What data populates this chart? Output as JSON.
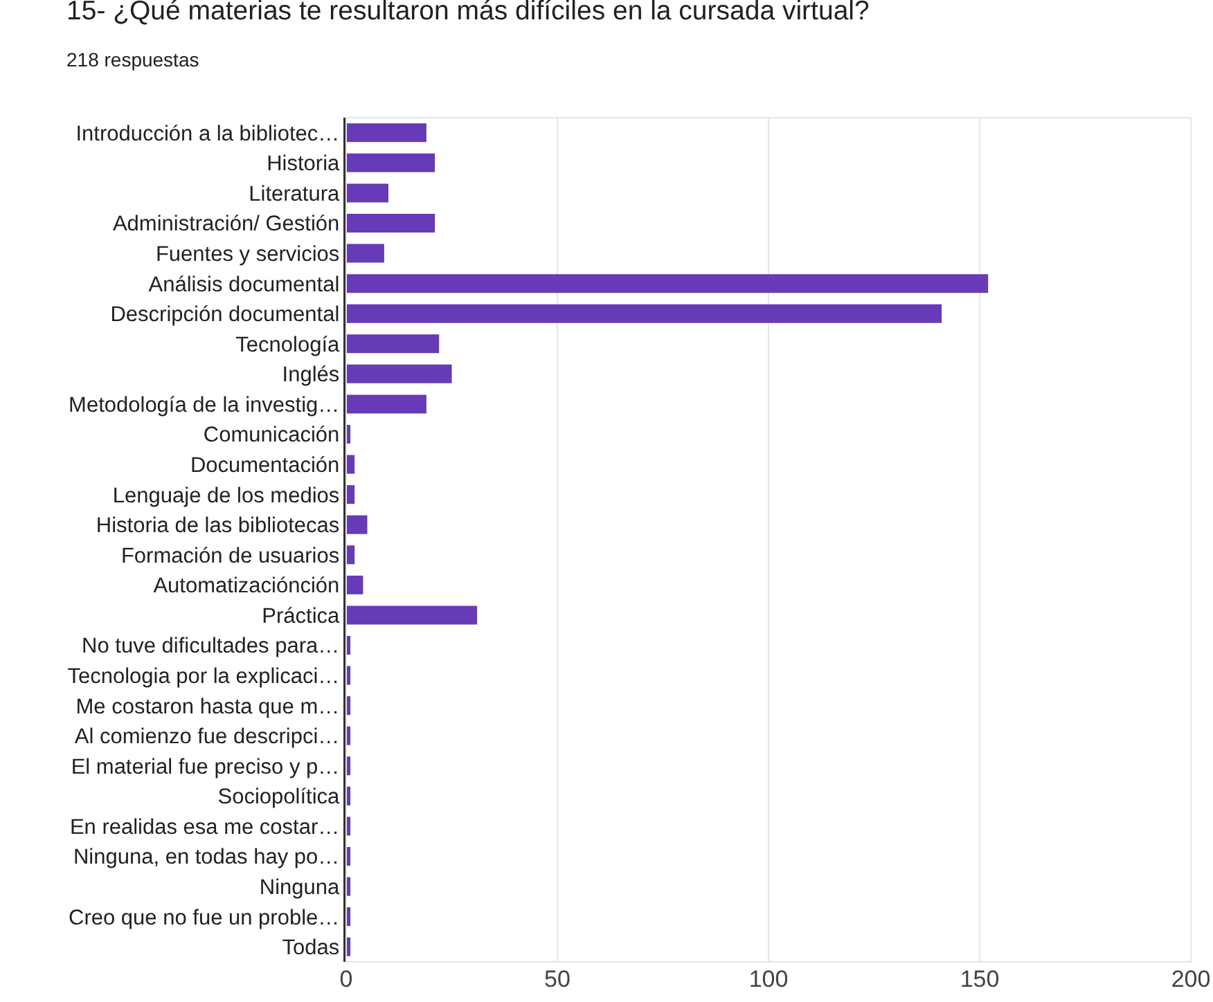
{
  "chart_data": {
    "type": "bar",
    "orientation": "horizontal",
    "title": "15- ¿Qué materias te resultaron más difíciles en la cursada virtual?",
    "subtitle": "218 respuestas",
    "categories": [
      "Introducción a la bibliotec…",
      "Historia",
      "Literatura",
      "Administración/ Gestión",
      "Fuentes y servicios",
      "Análisis documental",
      "Descripción documental",
      "Tecnología",
      "Inglés",
      "Metodología de la investig…",
      "Comunicación",
      "Documentación",
      "Lenguaje de los medios",
      "Historia de las bibliotecas",
      "Formación de usuarios",
      "Automatizaciónción",
      "Práctica",
      "No tuve dificultades para…",
      "Tecnologia por la explicaci…",
      "Me costaron hasta que m…",
      "Al comienzo fue descripci…",
      "El material fue preciso y p…",
      "Sociopolítica",
      "En realidas esa me costar…",
      "Ninguna, en todas hay po…",
      "Ninguna",
      "Creo que no fue un proble…",
      "Todas"
    ],
    "values": [
      19,
      21,
      10,
      21,
      9,
      152,
      141,
      22,
      25,
      19,
      1,
      2,
      2,
      5,
      2,
      4,
      31,
      1,
      1,
      1,
      1,
      1,
      1,
      1,
      1,
      1,
      1,
      1
    ],
    "color": "#673ab7",
    "xlim": [
      0,
      200
    ],
    "xticks": [
      0,
      50,
      100,
      150,
      200
    ],
    "grid": "x"
  }
}
